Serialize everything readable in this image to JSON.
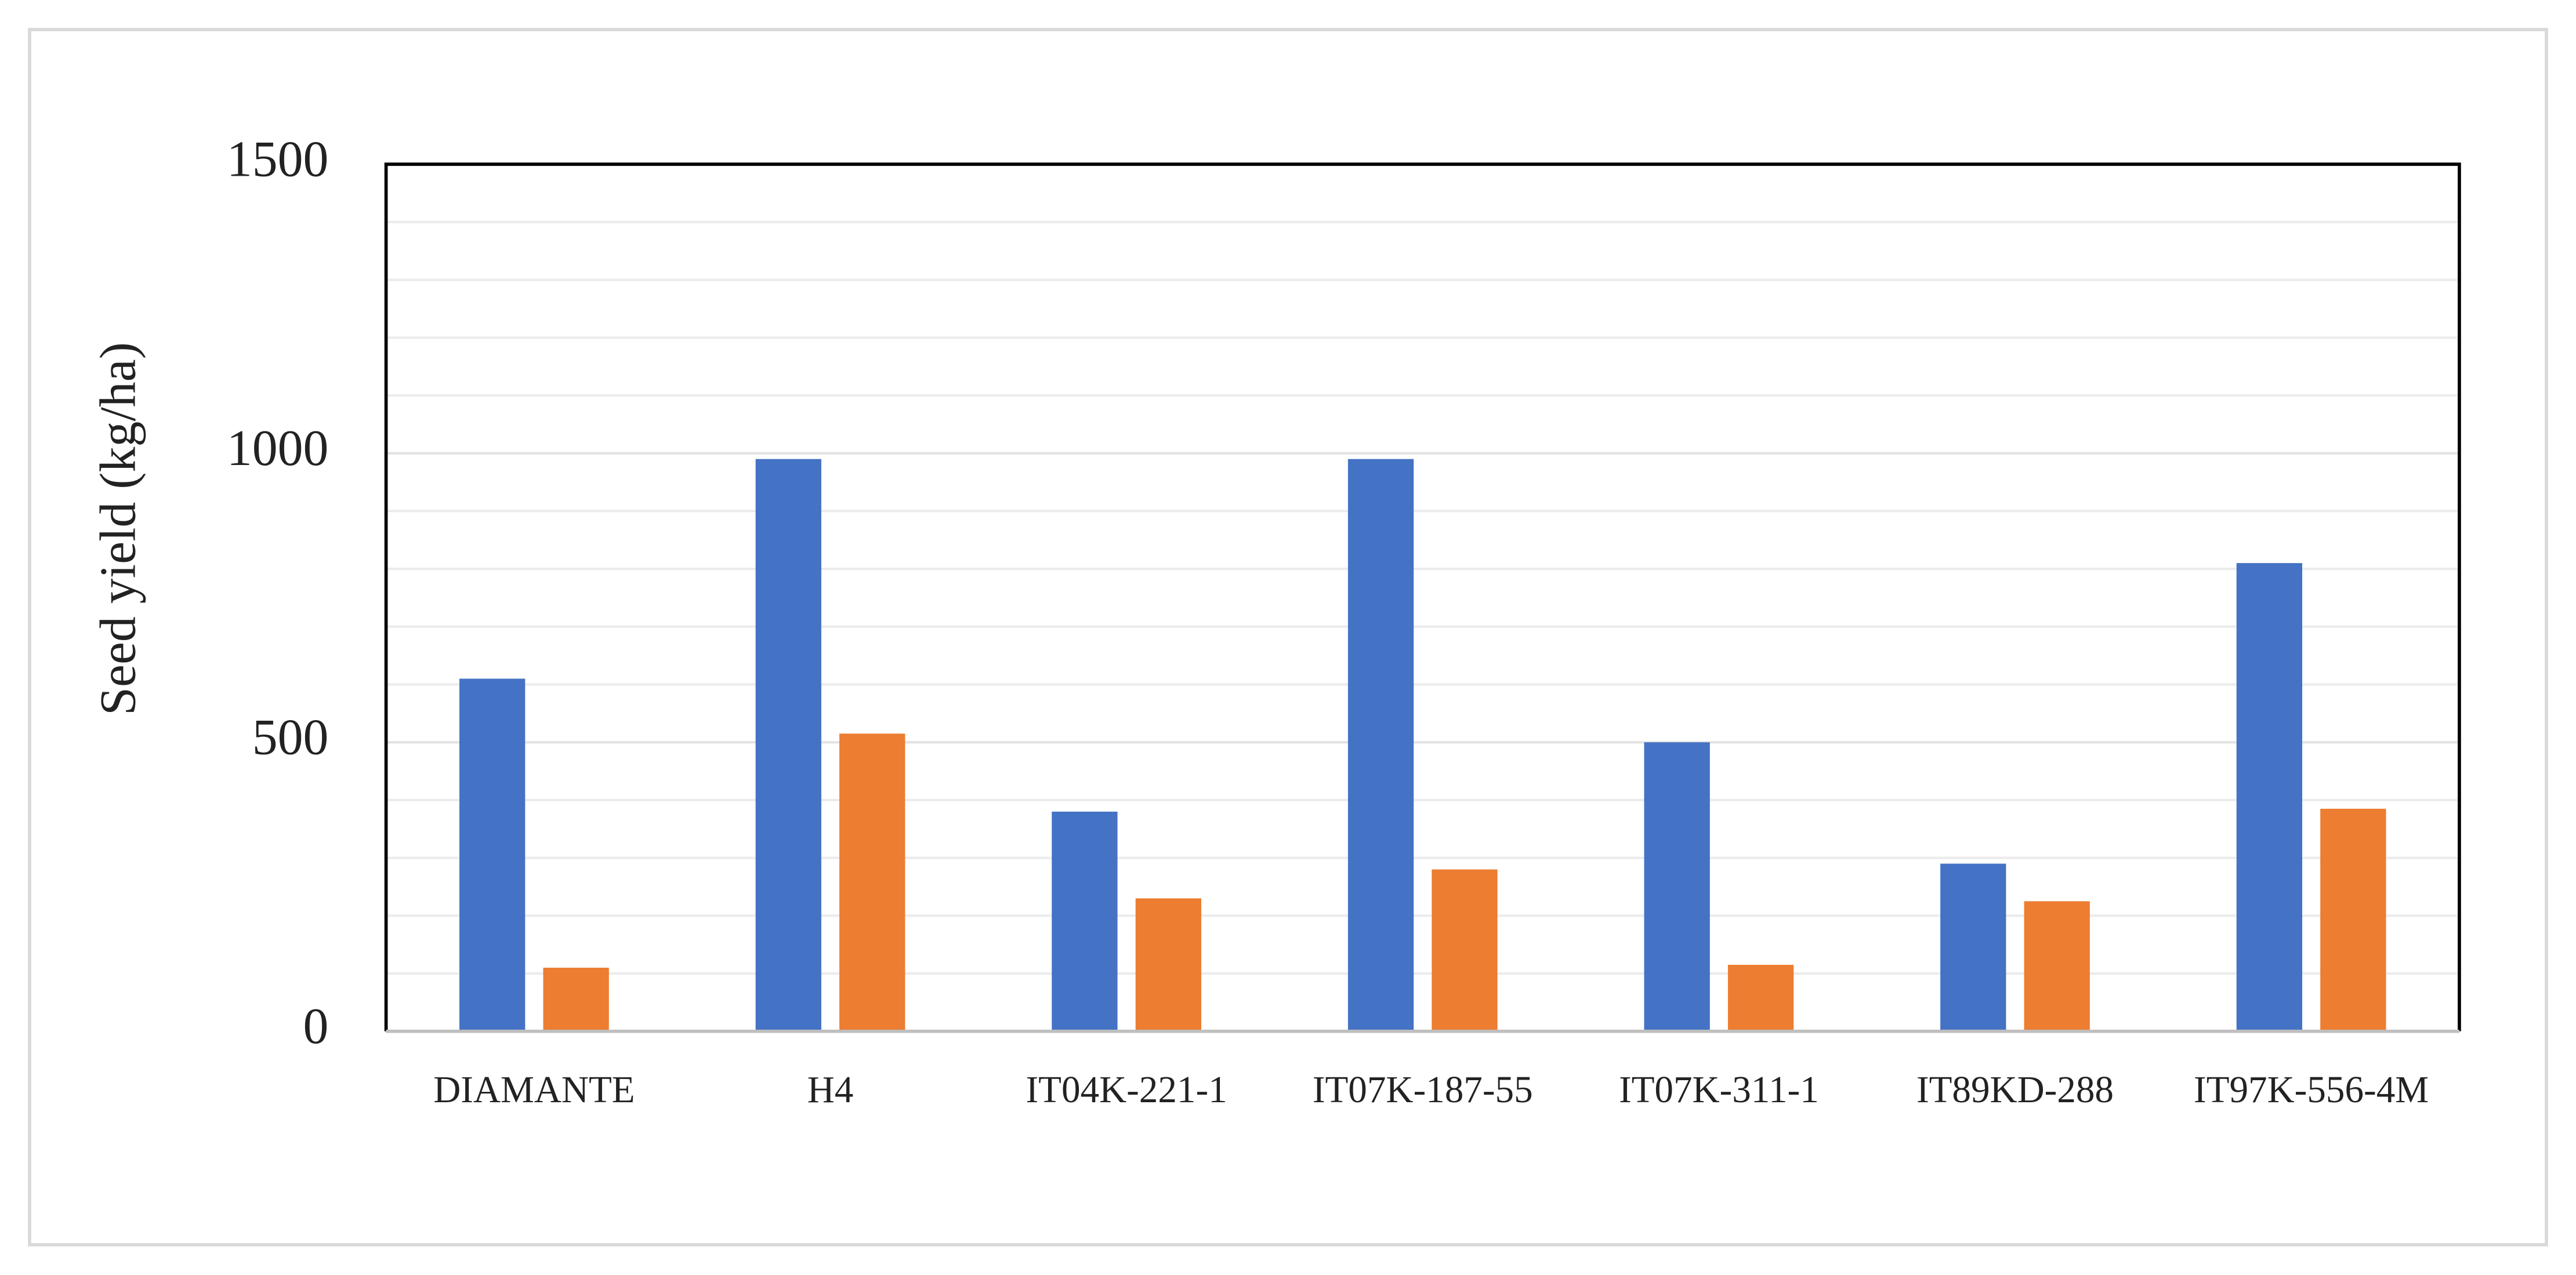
{
  "chart_data": {
    "type": "bar",
    "y_label": "Seed yield (kg/ha)",
    "categories": [
      "DIAMANTE",
      "H4",
      "IT04K-221-1",
      "IT07K-187-55",
      "IT07K-311-1",
      "IT89KD-288",
      "IT97K-556-4M"
    ],
    "series": [
      {
        "color": "#4472c4",
        "values": [
          610,
          990,
          380,
          990,
          500,
          290,
          810
        ]
      },
      {
        "color": "#ed7d31",
        "values": [
          110,
          515,
          230,
          280,
          115,
          225,
          385
        ]
      }
    ],
    "ylim": [
      0,
      1500
    ],
    "yticks": [
      0,
      500,
      1000,
      1500
    ],
    "minor_yticks": [
      100,
      200,
      300,
      400,
      600,
      700,
      800,
      900,
      1100,
      1200,
      1300,
      1400
    ],
    "grid": true
  }
}
